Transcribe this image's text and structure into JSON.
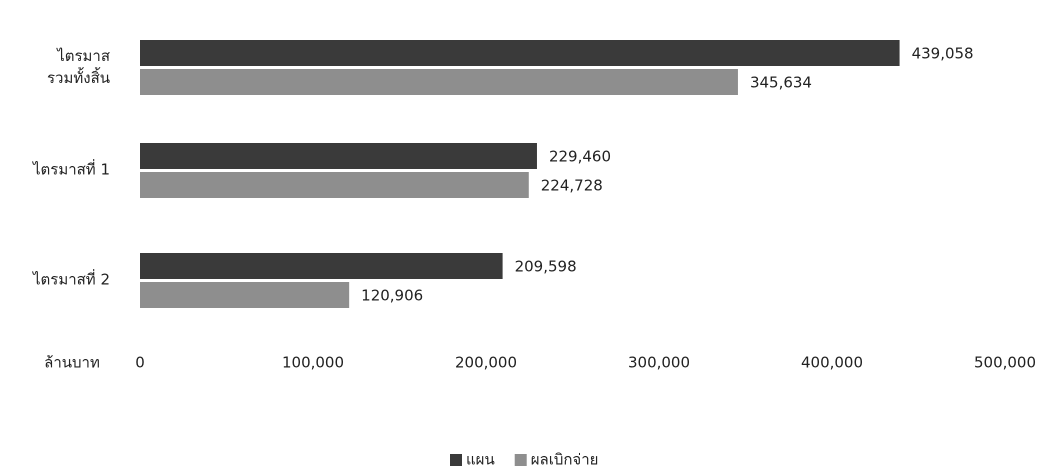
{
  "chart_data": {
    "type": "hbar",
    "categories": [
      "ไตรมาส\nรวมทั้งสิ้น",
      "ไตรมาสที่ 1",
      "ไตรมาสที่ 2"
    ],
    "series": [
      {
        "name": "แผน",
        "color": "#3a3a3a",
        "values": [
          439058,
          229460,
          209598
        ],
        "value_labels": [
          "439,058",
          "229,460",
          "209,598"
        ]
      },
      {
        "name": "ผลเบิกจ่าย",
        "color": "#8e8e8e",
        "values": [
          345634,
          224728,
          120906
        ],
        "value_labels": [
          "345,634",
          "224,728",
          "120,906"
        ]
      }
    ],
    "x_label": "ล้านบาท",
    "xlim": [
      0,
      500000
    ],
    "xticks": [
      0,
      {
        "value": 100000,
        "label": "100,000"
      },
      {
        "value": 200000,
        "label": "200,000"
      },
      {
        "value": 300000,
        "label": "300,000"
      },
      {
        "value": 400000,
        "label": "400,000"
      },
      {
        "value": 500000,
        "label": "500,000"
      }
    ],
    "grid": false,
    "legend": "bottom"
  }
}
